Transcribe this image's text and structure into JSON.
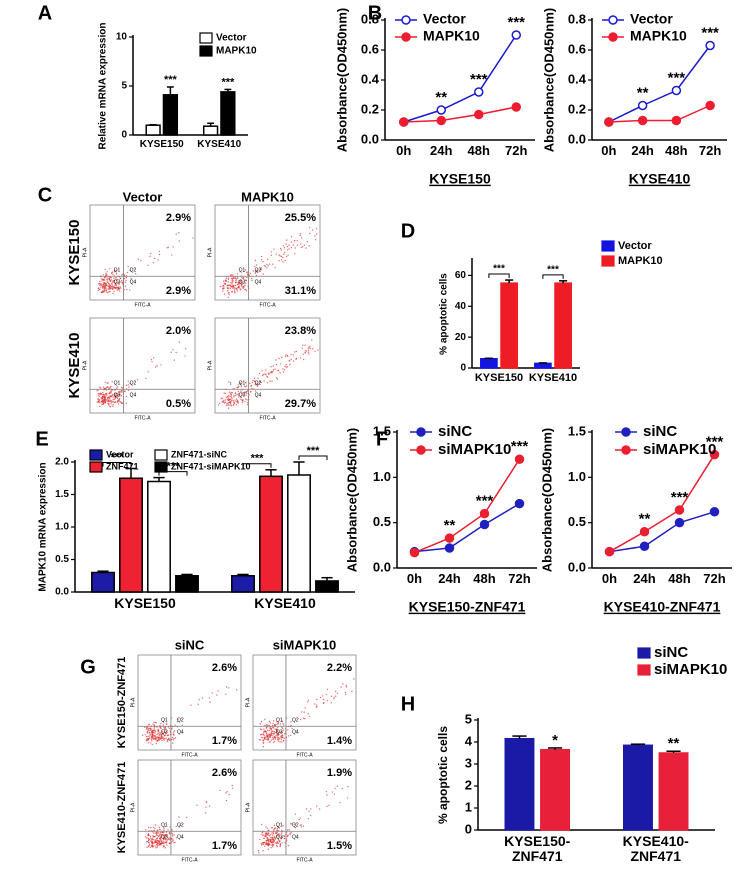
{
  "panel_letters": [
    "A",
    "B",
    "C",
    "D",
    "E",
    "F",
    "G",
    "H"
  ],
  "chart_data": [
    {
      "type": "bar",
      "ylabel": "Relative mRNA expression",
      "categories": [
        "KYSE150",
        "KYSE410"
      ],
      "ylim": [
        0,
        10
      ],
      "yticks": [
        0,
        5,
        10
      ],
      "edgecolor": "#000000",
      "series": [
        {
          "name": "Vector",
          "color": "#ffffff",
          "values": [
            1.0,
            0.9
          ],
          "errors": [
            0.05,
            0.3
          ]
        },
        {
          "name": "MAPK10",
          "color": "#000000",
          "values": [
            4.1,
            4.4
          ],
          "errors": [
            0.8,
            0.25
          ],
          "significance": [
            "***",
            "***"
          ]
        }
      ]
    },
    {
      "type": "line",
      "ylabel": "Absorbance(OD450nm)",
      "xlabel": "KYSE150",
      "categories": [
        "0h",
        "24h",
        "48h",
        "72h"
      ],
      "ylim": [
        0,
        0.8
      ],
      "yticks": [
        {
          "value": 0,
          "label": "0.0"
        },
        0.2,
        0.4,
        0.6,
        0.8
      ],
      "series": [
        {
          "name": "Vector",
          "color": "#1a1ad0",
          "marker": "open-circle",
          "values": [
            0.12,
            0.2,
            0.32,
            0.7
          ],
          "significance": [
            null,
            "**",
            "***",
            "***"
          ]
        },
        {
          "name": "MAPK10",
          "color": "#ee1c30",
          "marker": "circle",
          "values": [
            0.12,
            0.13,
            0.17,
            0.22
          ]
        }
      ]
    },
    {
      "type": "line",
      "ylabel": "Absorbance(OD450nm)",
      "xlabel": "KYSE410",
      "categories": [
        "0h",
        "24h",
        "48h",
        "72h"
      ],
      "ylim": [
        0,
        0.8
      ],
      "yticks": [
        {
          "value": 0,
          "label": "0.0"
        },
        0.2,
        0.4,
        0.6,
        0.8
      ],
      "series": [
        {
          "name": "Vector",
          "color": "#1a1ad0",
          "marker": "open-circle",
          "values": [
            0.12,
            0.23,
            0.33,
            0.63
          ],
          "significance": [
            null,
            "**",
            "***",
            "***"
          ]
        },
        {
          "name": "MAPK10",
          "color": "#ee1c30",
          "marker": "circle",
          "values": [
            0.12,
            0.13,
            0.13,
            0.23
          ]
        }
      ]
    },
    {
      "type": "bar",
      "ylabel": "% apoptotic cells",
      "categories": [
        "KYSE150",
        "KYSE410"
      ],
      "ylim": [
        0,
        70
      ],
      "yticks": [
        0,
        20,
        40,
        60
      ],
      "bracket_labels": [
        [
          "***"
        ],
        [
          "***"
        ]
      ],
      "series": [
        {
          "name": "Vector",
          "color": "#1515e0",
          "values": [
            6,
            3
          ],
          "errors": [
            0.3,
            0.3
          ]
        },
        {
          "name": "MAPK10",
          "color": "#ee1c25",
          "values": [
            55,
            55
          ],
          "errors": [
            2,
            1.5
          ]
        }
      ]
    },
    {
      "type": "bar",
      "ylabel": "MAPK10 mRNA expression",
      "categories": [
        "KYSE150",
        "KYSE410"
      ],
      "ylim": [
        0,
        2.0
      ],
      "yticks": [
        {
          "value": 0,
          "label": "0.0"
        },
        0.5,
        {
          "value": 1,
          "label": "1.0"
        },
        1.5,
        {
          "value": 2,
          "label": "2.0"
        }
      ],
      "edgecolor": "#000000",
      "bracket_labels": [
        [
          "***",
          "***"
        ],
        [
          "***",
          "***"
        ]
      ],
      "series": [
        {
          "name": "Vector",
          "color": "#1c1ca8",
          "values": [
            0.3,
            0.25
          ],
          "errors": [
            0.02,
            0.02
          ]
        },
        {
          "name": "ZNF471",
          "color": "#ee2233",
          "values": [
            1.75,
            1.78
          ],
          "errors": [
            0.15,
            0.1
          ]
        },
        {
          "name": "ZNF471-siNC",
          "color": "#ffffff",
          "values": [
            1.7,
            1.8
          ],
          "errors": [
            0.06,
            0.2
          ]
        },
        {
          "name": "ZNF471-siMAPK10",
          "color": "#000000",
          "values": [
            0.25,
            0.17
          ],
          "errors": [
            0.02,
            0.05
          ]
        }
      ]
    },
    {
      "type": "line",
      "ylabel": "Absorbance(OD450nm)",
      "xlabel": "KYSE150-ZNF471",
      "categories": [
        "0h",
        "24h",
        "48h",
        "72h"
      ],
      "ylim": [
        0,
        1.5
      ],
      "yticks": [
        {
          "value": 0,
          "label": "0.0"
        },
        0.5,
        {
          "value": 1,
          "label": "1.0"
        },
        1.5
      ],
      "series": [
        {
          "name": "siNC",
          "color": "#2020c0",
          "marker": "circle",
          "values": [
            0.18,
            0.22,
            0.48,
            0.71
          ]
        },
        {
          "name": "siMAPK10",
          "color": "#e8202f",
          "marker": "circle",
          "values": [
            0.17,
            0.33,
            0.6,
            1.2
          ],
          "significance": [
            null,
            "**",
            "***",
            "***"
          ]
        }
      ]
    },
    {
      "type": "line",
      "ylabel": "Absorbance(OD450nm)",
      "xlabel": "KYSE410-ZNF471",
      "categories": [
        "0h",
        "24h",
        "48h",
        "72h"
      ],
      "ylim": [
        0,
        1.5
      ],
      "yticks": [
        {
          "value": 0,
          "label": "0.0"
        },
        0.5,
        {
          "value": 1,
          "label": "1.0"
        },
        1.5
      ],
      "series": [
        {
          "name": "siNC",
          "color": "#2020c0",
          "marker": "circle",
          "values": [
            0.18,
            0.24,
            0.5,
            0.62
          ]
        },
        {
          "name": "siMAPK10",
          "color": "#e8202f",
          "marker": "circle",
          "values": [
            0.18,
            0.4,
            0.64,
            1.25
          ],
          "significance": [
            null,
            "**",
            "***",
            "***"
          ]
        }
      ]
    },
    {
      "type": "bar",
      "ylabel": "% apoptotic cells",
      "categories": [
        "KYSE150-\nZNF471",
        "KYSE410-\nZNF471"
      ],
      "ylim": [
        0,
        5
      ],
      "yticks": [
        0,
        1,
        2,
        3,
        4,
        5
      ],
      "series": [
        {
          "name": "siNC",
          "color": "#1a1aa6",
          "values": [
            4.15,
            3.85
          ],
          "errors": [
            0.12,
            0.05
          ]
        },
        {
          "name": "siMAPK10",
          "color": "#e8203a",
          "values": [
            3.65,
            3.5
          ],
          "errors": [
            0.08,
            0.08
          ],
          "significance": [
            "*",
            "**"
          ]
        }
      ]
    }
  ],
  "flow_axis": {
    "quadrants": [
      "Q1",
      "Q2",
      "Q3",
      "Q4"
    ],
    "x_label": "FITC-A",
    "y_label": "PI-A"
  },
  "flow_panels": [
    {
      "columns": [
        "Vector",
        "MAPK10"
      ],
      "rows": [
        "KYSE150",
        "KYSE410"
      ],
      "quadrant_percent": [
        [
          [
            "2.9%",
            "2.9%"
          ],
          [
            "25.5%",
            "31.1%"
          ]
        ],
        [
          [
            "2.0%",
            "0.5%"
          ],
          [
            "23.8%",
            "29.7%"
          ]
        ]
      ]
    },
    {
      "columns": [
        "siNC",
        "siMAPK10"
      ],
      "rows": [
        "KYSE150-ZNF471",
        "KYSE410-ZNF471"
      ],
      "quadrant_percent": [
        [
          [
            "2.6%",
            "1.7%"
          ],
          [
            "2.2%",
            "1.4%"
          ]
        ],
        [
          [
            "2.6%",
            "1.7%"
          ],
          [
            "1.9%",
            "1.5%"
          ]
        ]
      ]
    }
  ]
}
